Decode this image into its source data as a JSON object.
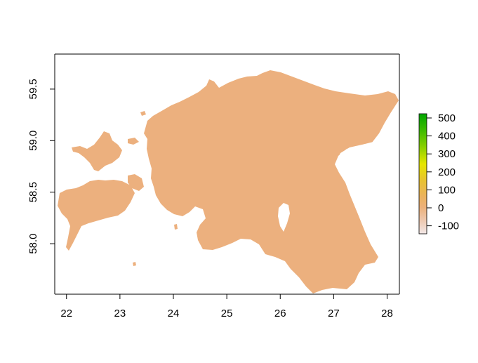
{
  "map": {
    "x_axis": {
      "ticks": [
        {
          "value": 22,
          "label": "22"
        },
        {
          "value": 23,
          "label": "23"
        },
        {
          "value": 24,
          "label": "24"
        },
        {
          "value": 25,
          "label": "25"
        },
        {
          "value": 26,
          "label": "26"
        },
        {
          "value": 27,
          "label": "27"
        },
        {
          "value": 28,
          "label": "28"
        }
      ],
      "range": [
        21.78,
        28.23
      ]
    },
    "y_axis": {
      "ticks": [
        {
          "value": 58.0,
          "label": "58.0"
        },
        {
          "value": 58.5,
          "label": "58.5"
        },
        {
          "value": 59.0,
          "label": "59.0"
        },
        {
          "value": 59.5,
          "label": "59.5"
        }
      ],
      "range": [
        57.51,
        59.84
      ]
    },
    "raster_fill_color": "#ECB07E",
    "legend": {
      "placement": "right",
      "labels": [
        "500",
        "400",
        "300",
        "200",
        "100",
        "0",
        "-100"
      ],
      "colors": [
        "#00A600",
        "#3EBB00",
        "#8BD000",
        "#E6E600",
        "#E8C32E",
        "#EBB25E",
        "#ECB17B",
        "#EDC4A8",
        "#F0DCD6"
      ]
    }
  }
}
